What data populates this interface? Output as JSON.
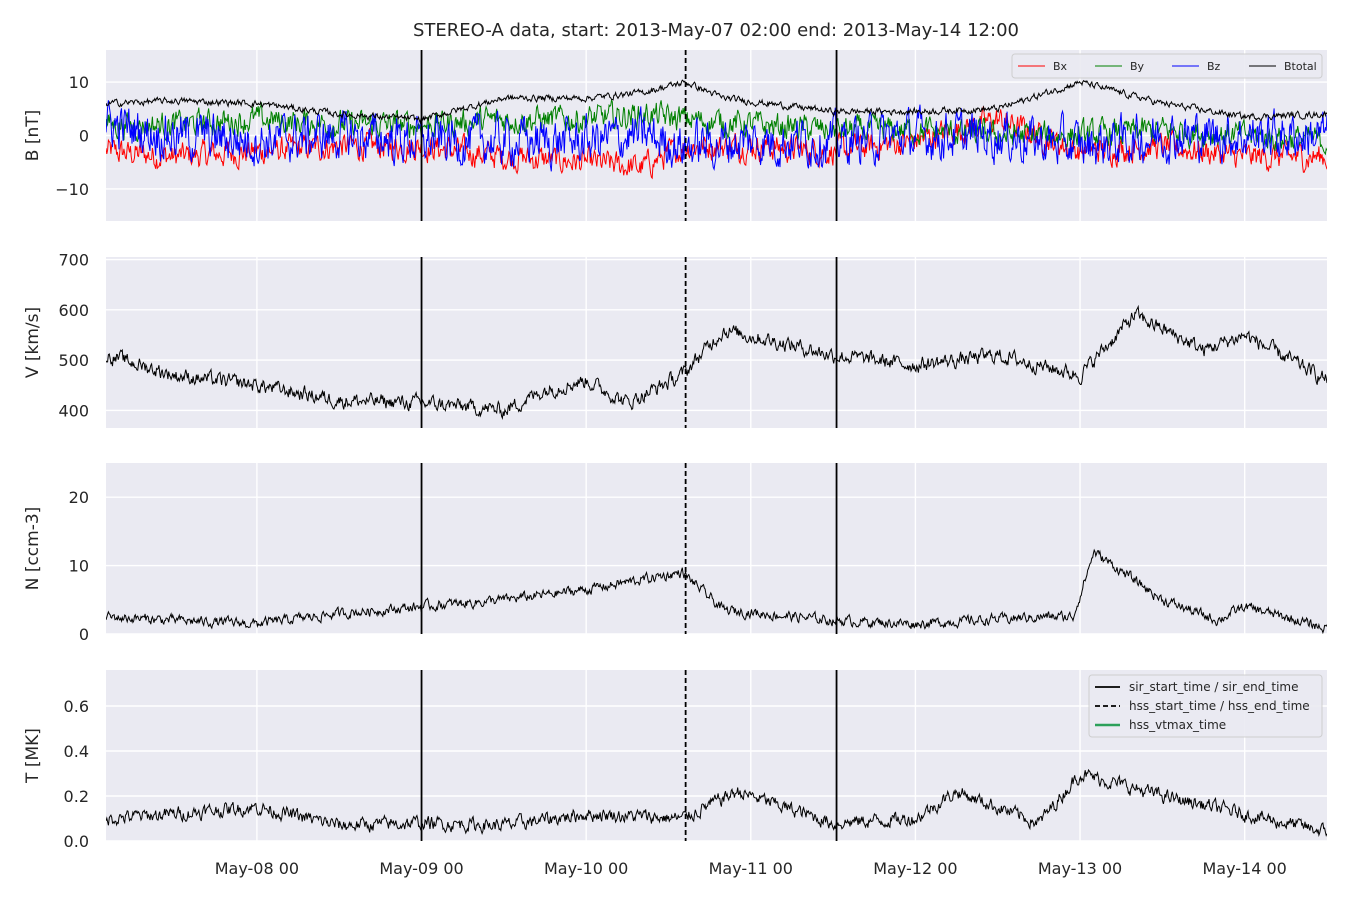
{
  "chart_data": {
    "type": "line",
    "title": "STEREO-A data, start: 2013-May-07 02:00  end: 2013-May-14 12:00",
    "x_range": [
      "2013-05-07 02:00",
      "2013-05-14 12:00"
    ],
    "x_tick_labels": [
      "May-08 00",
      "May-09 00",
      "May-10 00",
      "May-11 00",
      "May-12 00",
      "May-13 00",
      "May-14 00"
    ],
    "x_tick_values": [
      "2013-05-08 00:00",
      "2013-05-09 00:00",
      "2013-05-10 00:00",
      "2013-05-11 00:00",
      "2013-05-12 00:00",
      "2013-05-13 00:00",
      "2013-05-14 00:00"
    ],
    "grid": true,
    "event_lines": [
      {
        "time": "2013-05-09 00:00",
        "style": "solid",
        "label": "sir_start_time / sir_end_time"
      },
      {
        "time": "2013-05-10 14:30",
        "style": "dashed",
        "label": "hss_start_time / hss_end_time"
      },
      {
        "time": "2013-05-11 12:30",
        "style": "solid",
        "label": "sir_start_time / sir_end_time"
      }
    ],
    "panels": [
      {
        "ylabel": "B [nT]",
        "ylim": [
          -16,
          16
        ],
        "yticks": [
          -10,
          0,
          10
        ],
        "legend": "top-right",
        "series": [
          {
            "name": "Bx",
            "color": "#ff0000",
            "noise": 2.0,
            "x": [
              "2013-05-07 02:00",
              "2013-05-07 12:00",
              "2013-05-08 00:00",
              "2013-05-08 12:00",
              "2013-05-09 00:00",
              "2013-05-09 12:00",
              "2013-05-10 00:00",
              "2013-05-10 08:00",
              "2013-05-10 14:30",
              "2013-05-11 00:00",
              "2013-05-11 12:00",
              "2013-05-12 00:00",
              "2013-05-12 12:00",
              "2013-05-13 00:00",
              "2013-05-13 12:00",
              "2013-05-14 00:00",
              "2013-05-14 12:00"
            ],
            "y": [
              -3,
              -4,
              -3,
              -2,
              -2,
              -4,
              -5,
              -6,
              -2,
              -2,
              -3,
              -1,
              3,
              -3,
              -2,
              -4,
              -4
            ]
          },
          {
            "name": "By",
            "color": "#008000",
            "noise": 2.0,
            "x": [
              "2013-05-07 02:00",
              "2013-05-07 12:00",
              "2013-05-08 00:00",
              "2013-05-08 12:00",
              "2013-05-09 00:00",
              "2013-05-09 12:00",
              "2013-05-10 00:00",
              "2013-05-10 08:00",
              "2013-05-10 14:30",
              "2013-05-11 00:00",
              "2013-05-11 12:00",
              "2013-05-12 00:00",
              "2013-05-12 12:00",
              "2013-05-13 00:00",
              "2013-05-13 12:00",
              "2013-05-14 00:00",
              "2013-05-14 12:00"
            ],
            "y": [
              2,
              2,
              3,
              2,
              2,
              3,
              3,
              4,
              3,
              2,
              1,
              1,
              0,
              0,
              1,
              0,
              -1
            ]
          },
          {
            "name": "Bz",
            "color": "#0000ff",
            "noise": 3.5,
            "x": [
              "2013-05-07 02:00",
              "2013-05-07 12:00",
              "2013-05-08 00:00",
              "2013-05-08 12:00",
              "2013-05-09 00:00",
              "2013-05-09 12:00",
              "2013-05-10 00:00",
              "2013-05-10 08:00",
              "2013-05-10 14:30",
              "2013-05-11 00:00",
              "2013-05-11 12:00",
              "2013-05-12 00:00",
              "2013-05-12 12:00",
              "2013-05-13 00:00",
              "2013-05-13 12:00",
              "2013-05-14 00:00",
              "2013-05-14 12:00"
            ],
            "y": [
              2,
              0,
              -1,
              0,
              -1,
              -1,
              -1,
              0,
              -2,
              -1,
              -1,
              0,
              0,
              -2,
              0,
              0,
              0
            ]
          },
          {
            "name": "Btotal",
            "color": "#000000",
            "noise": 0.5,
            "x": [
              "2013-05-07 02:00",
              "2013-05-07 12:00",
              "2013-05-08 00:00",
              "2013-05-08 12:00",
              "2013-05-09 00:00",
              "2013-05-09 12:00",
              "2013-05-10 00:00",
              "2013-05-10 08:00",
              "2013-05-10 14:30",
              "2013-05-10 20:00",
              "2013-05-11 12:00",
              "2013-05-12 00:00",
              "2013-05-12 12:00",
              "2013-05-13 00:00",
              "2013-05-13 12:00",
              "2013-05-14 00:00",
              "2013-05-14 12:00"
            ],
            "y": [
              6,
              6.5,
              6,
              4,
              3,
              7,
              7,
              8,
              10,
              7,
              4.5,
              4.5,
              5,
              10,
              6,
              3.5,
              4
            ]
          }
        ]
      },
      {
        "ylabel": "V [km/s]",
        "ylim": [
          365,
          705
        ],
        "yticks": [
          400,
          500,
          600,
          700
        ],
        "series": [
          {
            "name": "V",
            "color": "#000000",
            "noise": 12,
            "x": [
              "2013-05-07 02:00",
              "2013-05-07 12:00",
              "2013-05-08 00:00",
              "2013-05-08 12:00",
              "2013-05-09 00:00",
              "2013-05-09 12:00",
              "2013-05-09 18:00",
              "2013-05-10 00:00",
              "2013-05-10 06:00",
              "2013-05-10 14:00",
              "2013-05-10 20:00",
              "2013-05-11 06:00",
              "2013-05-11 12:00",
              "2013-05-12 00:00",
              "2013-05-12 12:00",
              "2013-05-13 00:00",
              "2013-05-13 08:00",
              "2013-05-13 18:00",
              "2013-05-14 00:00",
              "2013-05-14 12:00"
            ],
            "y": [
              510,
              470,
              450,
              420,
              415,
              400,
              440,
              460,
              415,
              470,
              560,
              530,
              510,
              490,
              510,
              470,
              590,
              520,
              550,
              460
            ]
          }
        ]
      },
      {
        "ylabel": "N [ccm-3]",
        "ylim": [
          0,
          25
        ],
        "yticks": [
          0,
          10,
          20
        ],
        "series": [
          {
            "name": "N",
            "color": "#000000",
            "noise": 0.6,
            "x": [
              "2013-05-07 02:00",
              "2013-05-07 12:00",
              "2013-05-08 00:00",
              "2013-05-08 12:00",
              "2013-05-09 00:00",
              "2013-05-09 12:00",
              "2013-05-10 00:00",
              "2013-05-10 14:00",
              "2013-05-10 20:00",
              "2013-05-11 12:00",
              "2013-05-12 00:00",
              "2013-05-12 18:00",
              "2013-05-12 23:00",
              "2013-05-13 02:00",
              "2013-05-13 12:00",
              "2013-05-13 20:00",
              "2013-05-14 00:00",
              "2013-05-14 12:00"
            ],
            "y": [
              2.5,
              2,
              1.5,
              3,
              4,
              5,
              6.5,
              9,
              3.5,
              2,
              1.5,
              2.5,
              2.5,
              12,
              5,
              2,
              4,
              0.8
            ]
          }
        ]
      },
      {
        "ylabel": "T [MK]",
        "ylim": [
          0,
          0.76
        ],
        "yticks": [
          0.0,
          0.2,
          0.4,
          0.6
        ],
        "legend": "top-right",
        "series": [
          {
            "name": "T",
            "color": "#000000",
            "noise": 0.025,
            "x": [
              "2013-05-07 02:00",
              "2013-05-07 12:00",
              "2013-05-08 00:00",
              "2013-05-08 12:00",
              "2013-05-09 00:00",
              "2013-05-09 12:00",
              "2013-05-10 00:00",
              "2013-05-10 14:00",
              "2013-05-10 22:00",
              "2013-05-11 12:00",
              "2013-05-12 00:00",
              "2013-05-12 06:00",
              "2013-05-12 18:00",
              "2013-05-13 00:00",
              "2013-05-13 12:00",
              "2013-05-14 00:00",
              "2013-05-14 12:00"
            ],
            "y": [
              0.1,
              0.12,
              0.15,
              0.07,
              0.08,
              0.07,
              0.12,
              0.1,
              0.22,
              0.08,
              0.1,
              0.22,
              0.08,
              0.3,
              0.2,
              0.12,
              0.04
            ]
          }
        ]
      }
    ],
    "event_legend": [
      {
        "label": "sir_start_time / sir_end_time",
        "style": "solid",
        "color": "#000000"
      },
      {
        "label": "hss_start_time / hss_end_time",
        "style": "dashed",
        "color": "#000000"
      },
      {
        "label": "hss_vtmax_time",
        "style": "solid",
        "color": "#2ca05a"
      }
    ]
  }
}
